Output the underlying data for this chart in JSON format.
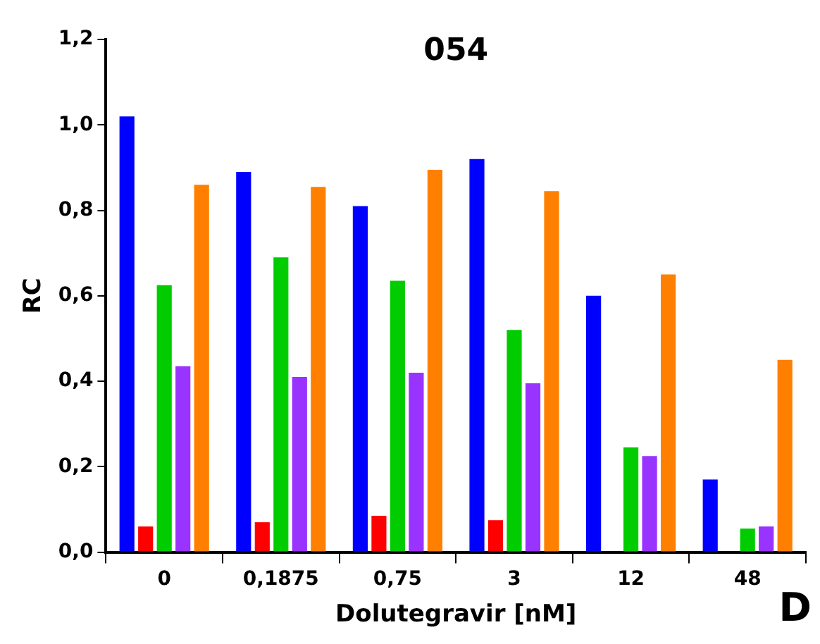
{
  "chart_data": {
    "type": "bar",
    "title": "054",
    "xlabel": "Dolutegravir [nM]",
    "ylabel": "RC",
    "categories": [
      "0",
      "0,1875",
      "0,75",
      "3",
      "12",
      "48"
    ],
    "series": [
      {
        "color": "#0000ff",
        "values": [
          1.02,
          0.89,
          0.81,
          0.92,
          0.6,
          0.17
        ]
      },
      {
        "color": "#ff0000",
        "values": [
          0.06,
          0.07,
          0.085,
          0.075,
          null,
          null
        ]
      },
      {
        "color": "#00cc00",
        "values": [
          0.625,
          0.69,
          0.635,
          0.52,
          0.245,
          0.055
        ]
      },
      {
        "color": "#9933ff",
        "values": [
          0.435,
          0.41,
          0.42,
          0.395,
          0.225,
          0.06
        ]
      },
      {
        "color": "#ff8000",
        "values": [
          0.86,
          0.855,
          0.895,
          0.845,
          0.65,
          0.45
        ]
      }
    ],
    "ylim": [
      0,
      1.2
    ],
    "yticks": [
      {
        "value": 0,
        "label": "0,0"
      },
      {
        "value": 0.2,
        "label": "0,2"
      },
      {
        "value": 0.4,
        "label": "0,4"
      },
      {
        "value": 0.6,
        "label": "0,6"
      },
      {
        "value": 0.8,
        "label": "0,8"
      },
      {
        "value": 1,
        "label": "1,0"
      },
      {
        "value": 1.2,
        "label": "1,2"
      }
    ],
    "grid": false,
    "legend": false,
    "annotations": [
      "D"
    ]
  }
}
